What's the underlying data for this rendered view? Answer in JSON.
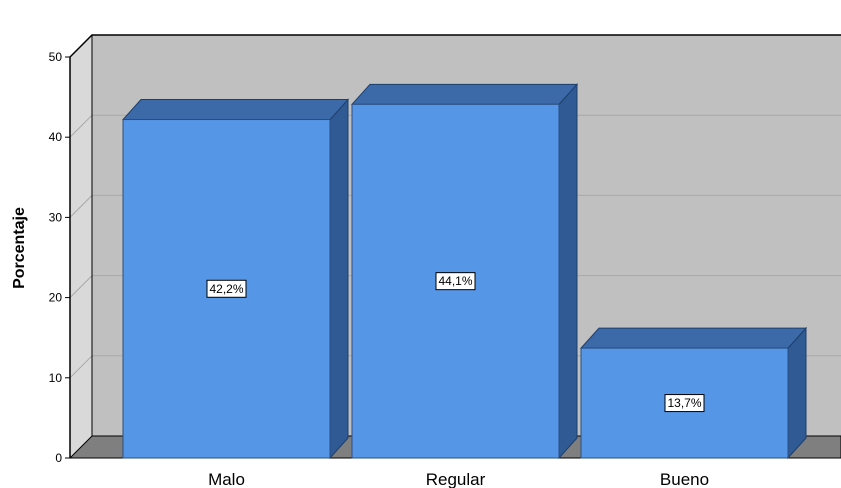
{
  "chart_data": {
    "type": "bar",
    "categories": [
      "Malo",
      "Regular",
      "Bueno"
    ],
    "values": [
      42.2,
      44.1,
      13.7
    ],
    "data_labels": [
      "42,2%",
      "44,1%",
      "13,7%"
    ],
    "ylabel": "Porcentaje",
    "xlabel": "",
    "ylim": [
      0,
      50
    ],
    "yticks": [
      0,
      10,
      20,
      30,
      40,
      50
    ],
    "grid": true,
    "style": "3d",
    "colors": {
      "bar_front": "#5596e6",
      "bar_top": "#3c69a8",
      "bar_side": "#2f5a94",
      "wall": "#c0c0c0",
      "floor": "#7f7f7f",
      "gridline": "#a8a8a8"
    }
  }
}
